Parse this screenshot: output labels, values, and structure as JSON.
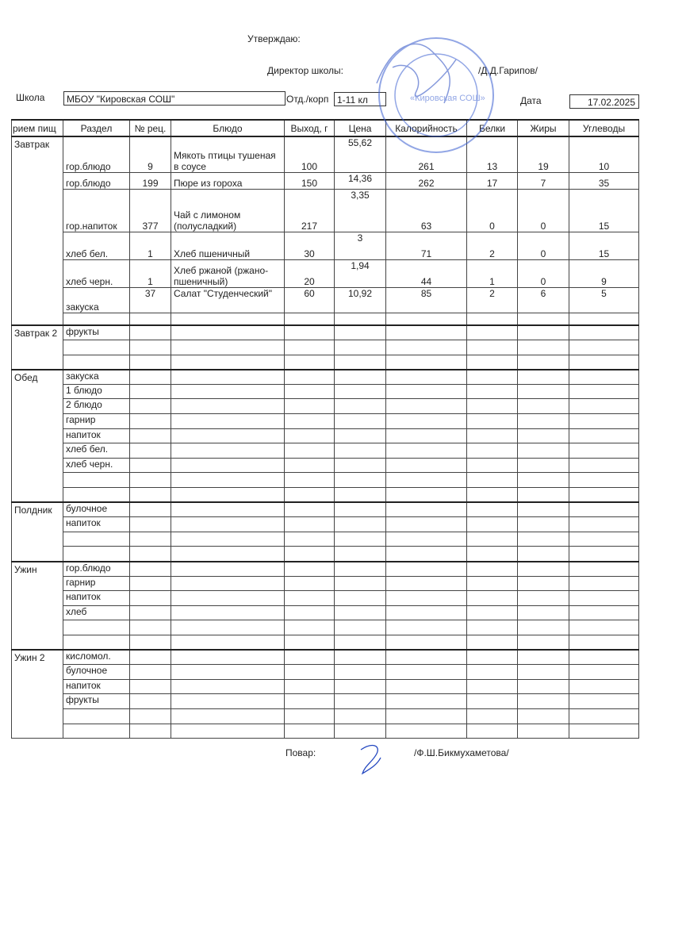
{
  "header": {
    "approve": "Утверждаю:",
    "director_label": "Директор школы:",
    "director_name": "/Д.Д.Гарипов/",
    "school_label": "Школа",
    "school_value": "МБОУ \"Кировская СОШ\"",
    "dept_label": "Отд./корп",
    "dept_value": "1-11 кл",
    "date_label": "Дата",
    "date_value": "17.02.2025"
  },
  "stamp": {
    "text": "Кировская СОШ",
    "color": "#3a5fd0"
  },
  "table": {
    "columns": [
      "рием пищ",
      "Раздел",
      "№ рец.",
      "Блюдо",
      "Выход, г",
      "Цена",
      "Калорийность",
      "Белки",
      "Жиры",
      "Углеводы"
    ],
    "sections": [
      {
        "meal": "Завтрак",
        "rows": [
          [
            "гор.блюдо",
            "9",
            "Мякоть птицы тушеная в соусе",
            "100",
            "55,62",
            "261",
            "13",
            "19",
            "10"
          ],
          [
            "гор.блюдо",
            "199",
            "Пюре из гороха",
            "150",
            "14,36",
            "262",
            "17",
            "7",
            "35"
          ],
          [
            "гор.напиток",
            "377",
            "Чай с лимоном (полусладкий)",
            "217",
            "3,35",
            "63",
            "0",
            "0",
            "15"
          ],
          [
            "хлеб бел.",
            "1",
            "Хлеб пшеничный",
            "30",
            "3",
            "71",
            "2",
            "0",
            "15"
          ],
          [
            "хлеб черн.",
            "1",
            "Хлеб ржаной (ржано-пшеничный)",
            "20",
            "1,94",
            "44",
            "1",
            "0",
            "9"
          ],
          [
            "закуска",
            "37",
            "Салат \"Студенческий\"",
            "60",
            "10,92",
            "85",
            "2",
            "6",
            "5"
          ],
          [
            "",
            "",
            "",
            "",
            "",
            "",
            "",
            "",
            ""
          ]
        ]
      },
      {
        "meal": "Завтрак 2",
        "rows": [
          [
            "фрукты"
          ],
          [
            ""
          ],
          [
            ""
          ]
        ]
      },
      {
        "meal": "Обед",
        "rows": [
          [
            "закуска"
          ],
          [
            "1 блюдо"
          ],
          [
            "2 блюдо"
          ],
          [
            "гарнир"
          ],
          [
            "напиток"
          ],
          [
            "хлеб бел."
          ],
          [
            "хлеб черн."
          ],
          [
            ""
          ],
          [
            ""
          ]
        ]
      },
      {
        "meal": "Полдник",
        "rows": [
          [
            "булочное"
          ],
          [
            "напиток"
          ],
          [
            ""
          ],
          [
            ""
          ]
        ]
      },
      {
        "meal": "Ужин",
        "rows": [
          [
            "гор.блюдо"
          ],
          [
            "гарнир"
          ],
          [
            "напиток"
          ],
          [
            "хлеб"
          ],
          [
            ""
          ],
          [
            ""
          ]
        ]
      },
      {
        "meal": "Ужин 2",
        "rows": [
          [
            "кисломол."
          ],
          [
            "булочное"
          ],
          [
            "напиток"
          ],
          [
            "фрукты"
          ],
          [
            ""
          ],
          [
            ""
          ]
        ]
      }
    ]
  },
  "footer": {
    "cook_label": "Повар:",
    "cook_name": "/Ф.Ш.Бикмухаметова/"
  }
}
